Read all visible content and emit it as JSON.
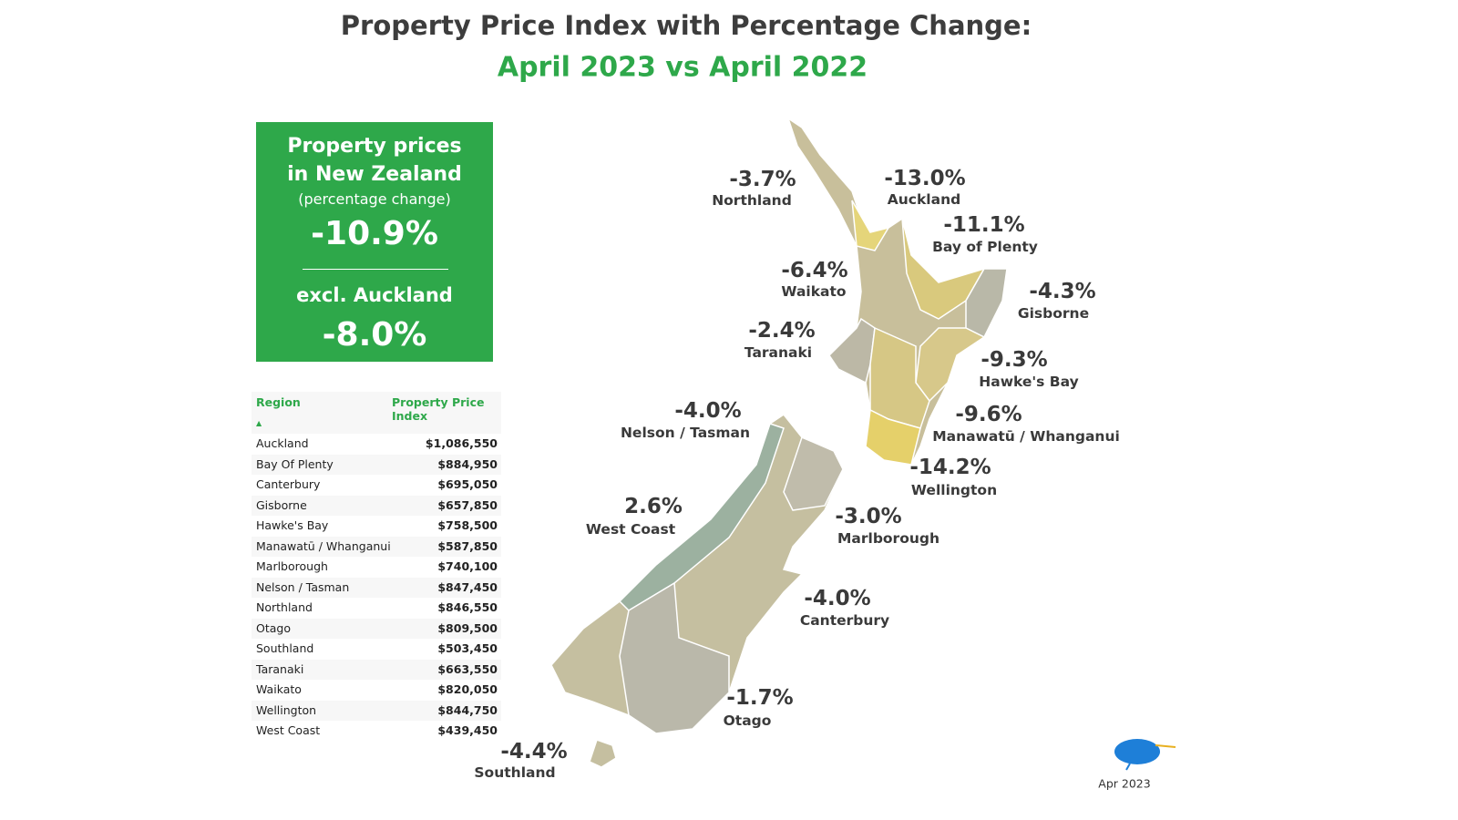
{
  "header": {
    "title": "Property Price Index with Percentage Change:",
    "subtitle": "April 2023 vs April 2022"
  },
  "summary": {
    "heading_line1": "Property prices",
    "heading_line2": "in New Zealand",
    "note": "(percentage change)",
    "total": "-10.9%",
    "excl_label": "excl. Auckland",
    "excl_value": "-8.0%"
  },
  "table": {
    "columns": [
      "Region",
      "Property Price Index"
    ],
    "sort_indicator": "▲",
    "rows": [
      [
        "Auckland",
        "$1,086,550"
      ],
      [
        "Bay Of Plenty",
        "$884,950"
      ],
      [
        "Canterbury",
        "$695,050"
      ],
      [
        "Gisborne",
        "$657,850"
      ],
      [
        "Hawke's Bay",
        "$758,500"
      ],
      [
        "Manawatū / Whanganui",
        "$587,850"
      ],
      [
        "Marlborough",
        "$740,100"
      ],
      [
        "Nelson / Tasman",
        "$847,450"
      ],
      [
        "Northland",
        "$846,550"
      ],
      [
        "Otago",
        "$809,500"
      ],
      [
        "Southland",
        "$503,450"
      ],
      [
        "Taranaki",
        "$663,550"
      ],
      [
        "Waikato",
        "$820,050"
      ],
      [
        "Wellington",
        "$844,750"
      ],
      [
        "West Coast",
        "$439,450"
      ]
    ]
  },
  "map": {
    "regions": [
      {
        "name": "Northland",
        "change": "-3.7%"
      },
      {
        "name": "Auckland",
        "change": "-13.0%"
      },
      {
        "name": "Bay of Plenty",
        "change": "-11.1%"
      },
      {
        "name": "Waikato",
        "change": "-6.4%"
      },
      {
        "name": "Gisborne",
        "change": "-4.3%"
      },
      {
        "name": "Taranaki",
        "change": "-2.4%"
      },
      {
        "name": "Hawke's Bay",
        "change": "-9.3%"
      },
      {
        "name": "Nelson / Tasman",
        "change": "-4.0%"
      },
      {
        "name": "Manawatū / Whanganui",
        "change": "-9.6%"
      },
      {
        "name": "Wellington",
        "change": "-14.2%"
      },
      {
        "name": "West Coast",
        "change": "2.6%"
      },
      {
        "name": "Marlborough",
        "change": "-3.0%"
      },
      {
        "name": "Canterbury",
        "change": "-4.0%"
      },
      {
        "name": "Otago",
        "change": "-1.7%"
      },
      {
        "name": "Southland",
        "change": "-4.4%"
      }
    ]
  },
  "footer": {
    "date": "Apr 2023"
  }
}
